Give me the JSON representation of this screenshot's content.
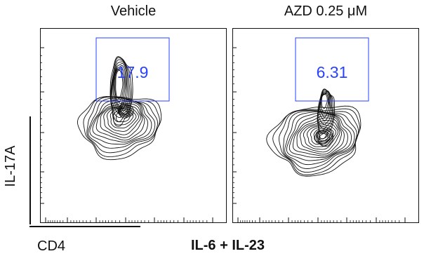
{
  "chart_data": {
    "type": "contour",
    "panel_titles": [
      "Vehicle",
      "AZD 0.25 μM"
    ],
    "gate_values": [
      "17.9",
      "6.31"
    ],
    "ylabel": "IL-17A",
    "xlabel": "CD4",
    "footer_label": "IL-6 + IL-23",
    "grid": false,
    "legend": false,
    "series": [
      {
        "name": "Vehicle",
        "gate_percent": 17.9,
        "density_centers": [
          {
            "x": 0.55,
            "y": 0.49
          },
          {
            "x": 0.53,
            "y": 0.43
          },
          {
            "x": 0.56,
            "y": 0.63
          }
        ]
      },
      {
        "name": "AZD 0.25 μM",
        "gate_percent": 6.31,
        "density_centers": [
          {
            "x": 0.5,
            "y": 0.42
          },
          {
            "x": 0.48,
            "y": 0.38
          },
          {
            "x": 0.52,
            "y": 0.56
          }
        ]
      }
    ]
  },
  "colors": {
    "axis": "#111111",
    "contour": "#111111",
    "gate": "#2a42ff"
  }
}
